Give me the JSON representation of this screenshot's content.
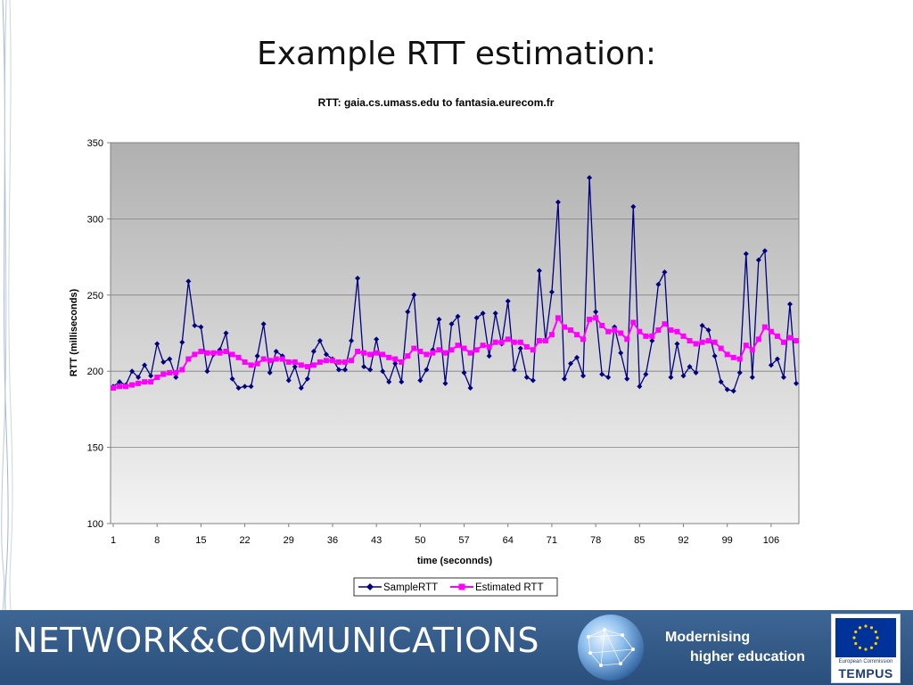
{
  "slide": {
    "title": "Example RTT estimation:"
  },
  "footer": {
    "title": "NETWORK&COMMUNICATIONS",
    "tagline_line1": "Modernising",
    "tagline_line2": "higher education",
    "logo_ec": "European Commission",
    "logo_name": "TEMPUS"
  },
  "colors": {
    "sample_series": "#000080",
    "estimated_series": "#ff00ff",
    "footer_bg": "#2f5785"
  },
  "chart_data": {
    "type": "line",
    "title": "RTT: gaia.cs.umass.edu to fantasia.eurecom.fr",
    "xlabel": "time (seconnds)",
    "ylabel": "RTT (milliseconds)",
    "ylim": [
      100,
      350
    ],
    "yticks": [
      100,
      150,
      200,
      250,
      300,
      350
    ],
    "xticks": [
      "1",
      "8",
      "15",
      "22",
      "29",
      "36",
      "43",
      "50",
      "57",
      "64",
      "71",
      "78",
      "85",
      "92",
      "99",
      "106"
    ],
    "x": [
      1,
      2,
      3,
      4,
      5,
      6,
      7,
      8,
      9,
      10,
      11,
      12,
      13,
      14,
      15,
      16,
      17,
      18,
      19,
      20,
      21,
      22,
      23,
      24,
      25,
      26,
      27,
      28,
      29,
      30,
      31,
      32,
      33,
      34,
      35,
      36,
      37,
      38,
      39,
      40,
      41,
      42,
      43,
      44,
      45,
      46,
      47,
      48,
      49,
      50,
      51,
      52,
      53,
      54,
      55,
      56,
      57,
      58,
      59,
      60,
      61,
      62,
      63,
      64,
      65,
      66,
      67,
      68,
      69,
      70,
      71,
      72,
      73,
      74,
      75,
      76,
      77,
      78,
      79,
      80,
      81,
      82,
      83,
      84,
      85,
      86,
      87,
      88,
      89,
      90,
      91,
      92,
      93,
      94,
      95,
      96,
      97,
      98,
      99,
      100,
      101,
      102,
      103,
      104,
      105,
      106,
      107,
      108,
      109,
      110
    ],
    "grid": true,
    "legend_position": "bottom",
    "series": [
      {
        "name": "SampleRTT",
        "marker": "diamond",
        "values": [
          190,
          193,
          191,
          200,
          196,
          204,
          197,
          218,
          206,
          208,
          196,
          219,
          259,
          230,
          229,
          200,
          211,
          214,
          225,
          195,
          189,
          190,
          190,
          210,
          231,
          199,
          213,
          210,
          194,
          203,
          189,
          195,
          213,
          220,
          211,
          208,
          201,
          201,
          220,
          261,
          203,
          201,
          221,
          200,
          193,
          205,
          193,
          239,
          250,
          194,
          201,
          214,
          234,
          192,
          231,
          236,
          199,
          189,
          235,
          238,
          210,
          238,
          218,
          246,
          201,
          215,
          196,
          194,
          266,
          220,
          252,
          311,
          195,
          205,
          209,
          197,
          327,
          239,
          198,
          196,
          229,
          212,
          195,
          308,
          190,
          198,
          220,
          257,
          265,
          196,
          218,
          197,
          203,
          199,
          230,
          227,
          210,
          193,
          188,
          187,
          199,
          277,
          196,
          273,
          279,
          204,
          208,
          196,
          244,
          192
        ]
      },
      {
        "name": "Estimated RTT",
        "marker": "square",
        "values": [
          189,
          190,
          190,
          191,
          192,
          193,
          193,
          196,
          198,
          199,
          199,
          201,
          208,
          211,
          213,
          212,
          212,
          212,
          213,
          211,
          209,
          206,
          204,
          205,
          208,
          207,
          208,
          208,
          206,
          206,
          204,
          203,
          204,
          206,
          207,
          207,
          206,
          206,
          207,
          213,
          212,
          211,
          212,
          211,
          209,
          208,
          206,
          210,
          215,
          213,
          211,
          212,
          214,
          212,
          214,
          217,
          215,
          212,
          214,
          217,
          216,
          219,
          219,
          221,
          219,
          219,
          216,
          214,
          220,
          220,
          224,
          235,
          229,
          227,
          224,
          221,
          234,
          235,
          230,
          226,
          227,
          225,
          221,
          232,
          226,
          223,
          223,
          227,
          231,
          227,
          226,
          223,
          220,
          218,
          219,
          220,
          219,
          215,
          211,
          209,
          208,
          217,
          214,
          221,
          229,
          226,
          223,
          219,
          222,
          220
        ]
      }
    ]
  }
}
